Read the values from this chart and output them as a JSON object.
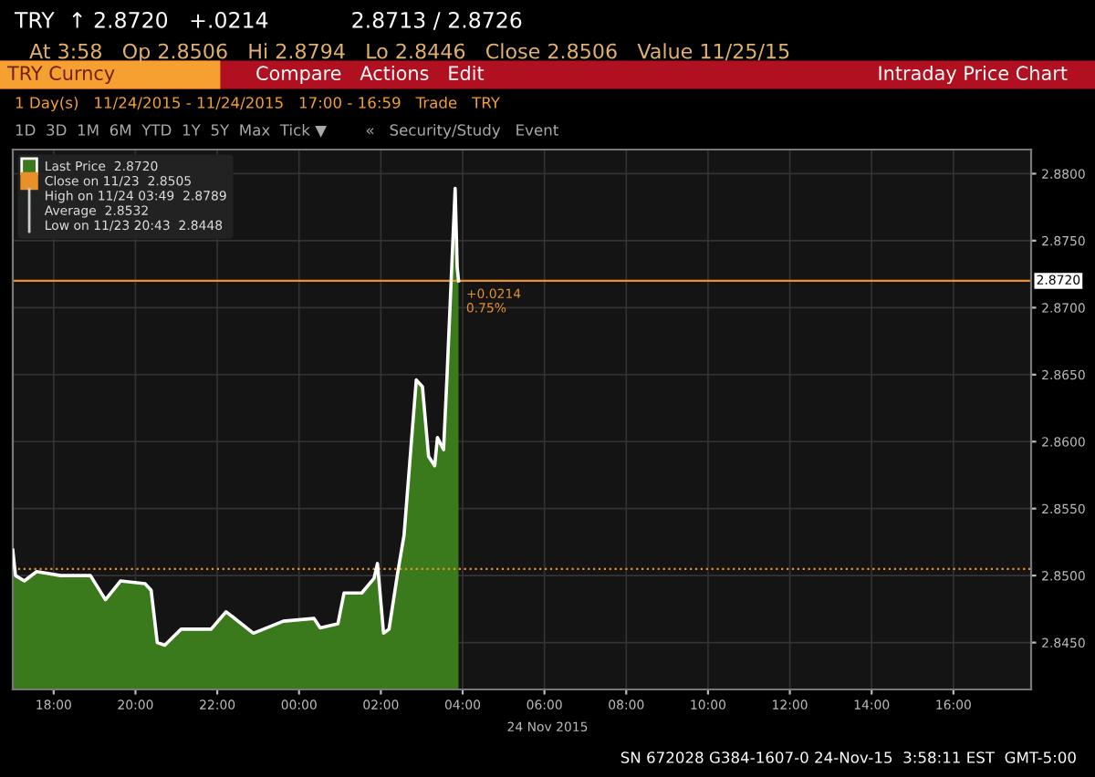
{
  "chart_data": {
    "type": "area",
    "title": "TRY Curncy",
    "subtitle": "Intraday Price Chart",
    "x": [
      "2015-11-23T17:00",
      "2015-11-23T17:04",
      "2015-11-23T17:17",
      "2015-11-23T17:35",
      "2015-11-23T18:10",
      "2015-11-23T18:54",
      "2015-11-23T19:16",
      "2015-11-23T19:38",
      "2015-11-23T20:14",
      "2015-11-23T20:23",
      "2015-11-23T20:32",
      "2015-11-23T20:43",
      "2015-11-23T21:07",
      "2015-11-23T21:51",
      "2015-11-23T22:13",
      "2015-11-23T22:53",
      "2015-11-23T23:37",
      "2015-11-24T00:22",
      "2015-11-24T00:31",
      "2015-11-24T00:57",
      "2015-11-24T01:06",
      "2015-11-24T01:32",
      "2015-11-24T01:50",
      "2015-11-24T01:55",
      "2015-11-24T02:04",
      "2015-11-24T02:12",
      "2015-11-24T02:25",
      "2015-11-24T02:34",
      "2015-11-24T02:47",
      "2015-11-24T02:52",
      "2015-11-24T03:01",
      "2015-11-24T03:10",
      "2015-11-24T03:19",
      "2015-11-24T03:23",
      "2015-11-24T03:32",
      "2015-11-24T03:37",
      "2015-11-24T03:49",
      "2015-11-24T03:52",
      "2015-11-24T03:54"
    ],
    "series": [
      {
        "name": "Last Price  2.8720",
        "color": "#3b7a1c",
        "values": [
          2.8519,
          2.85,
          2.8496,
          2.8503,
          2.85,
          2.85,
          2.8482,
          2.8496,
          2.8494,
          2.8489,
          2.845,
          2.8448,
          2.846,
          2.846,
          2.8473,
          2.8457,
          2.8466,
          2.8468,
          2.8461,
          2.8464,
          2.8487,
          2.8487,
          2.8498,
          2.8509,
          2.8457,
          2.846,
          2.8503,
          2.853,
          2.8614,
          2.8646,
          2.8641,
          2.8589,
          2.8582,
          2.8603,
          2.8594,
          2.8648,
          2.8789,
          2.873,
          2.872
        ]
      }
    ],
    "ref_lines": [
      {
        "axis": "y",
        "value": 2.8505,
        "label": "Close on 11/23  2.8505",
        "color": "#e8902a",
        "line_style": "dotted"
      },
      {
        "axis": "y",
        "value": 2.872,
        "label": "2.8720",
        "color": "#e8902a",
        "line_style": "solid"
      }
    ],
    "xlim": [
      "2015-11-23T17:00",
      "2015-11-24T17:54"
    ],
    "xticks": [
      {
        "value": "2015-11-23T18:00",
        "label": "18:00"
      },
      {
        "value": "2015-11-23T20:00",
        "label": "20:00"
      },
      {
        "value": "2015-11-23T22:00",
        "label": "22:00"
      },
      {
        "value": "2015-11-24T00:00",
        "label": "00:00"
      },
      {
        "value": "2015-11-24T02:00",
        "label": "02:00"
      },
      {
        "value": "2015-11-24T04:00",
        "label": "04:00"
      },
      {
        "value": "2015-11-24T06:00",
        "label": "06:00"
      },
      {
        "value": "2015-11-24T08:00",
        "label": "08:00"
      },
      {
        "value": "2015-11-24T10:00",
        "label": "10:00"
      },
      {
        "value": "2015-11-24T12:00",
        "label": "12:00"
      },
      {
        "value": "2015-11-24T14:00",
        "label": "14:00"
      },
      {
        "value": "2015-11-24T16:00",
        "label": "16:00"
      }
    ],
    "ylim": [
      2.8415,
      2.8818
    ],
    "yticks": [
      {
        "value": 2.845,
        "label": "2.8450"
      },
      {
        "value": 2.85,
        "label": "2.8500"
      },
      {
        "value": 2.855,
        "label": "2.8550"
      },
      {
        "value": 2.86,
        "label": "2.8600"
      },
      {
        "value": 2.865,
        "label": "2.8650"
      },
      {
        "value": 2.87,
        "label": "2.8700"
      },
      {
        "value": 2.875,
        "label": "2.8750"
      },
      {
        "value": 2.88,
        "label": "2.8800"
      }
    ],
    "grid": true,
    "legend": "top left",
    "annotations": [
      "TRY  ↑ 2.8720   +.0214            2.8713 / 2.8726",
      "At 3:58   Op 2.8506   Hi 2.8794   Lo 2.8446   Close 2.8506   Value 11/25/15",
      "Compare   Actions   Edit",
      "1 Day(s)   11/24/2015 - 11/24/2015   17:00 - 16:59   Trade   TRY",
      "1D  3D  1M  6M  YTD  1Y  5Y  Max  Tick ▼        «   Security/Study   Event",
      "High on 11/24 03:49  2.8789",
      "Average  2.8532",
      "Low on 11/23 20:43  2.8448",
      {
        "text": "+0.0214\n0.75%",
        "x": "2015-11-24T03:54",
        "y": 2.872
      },
      "24 Nov 2015",
      "SN 672028 G384-1607-0 24-Nov-15  3:58:11 EST  GMT-5:00"
    ]
  }
}
